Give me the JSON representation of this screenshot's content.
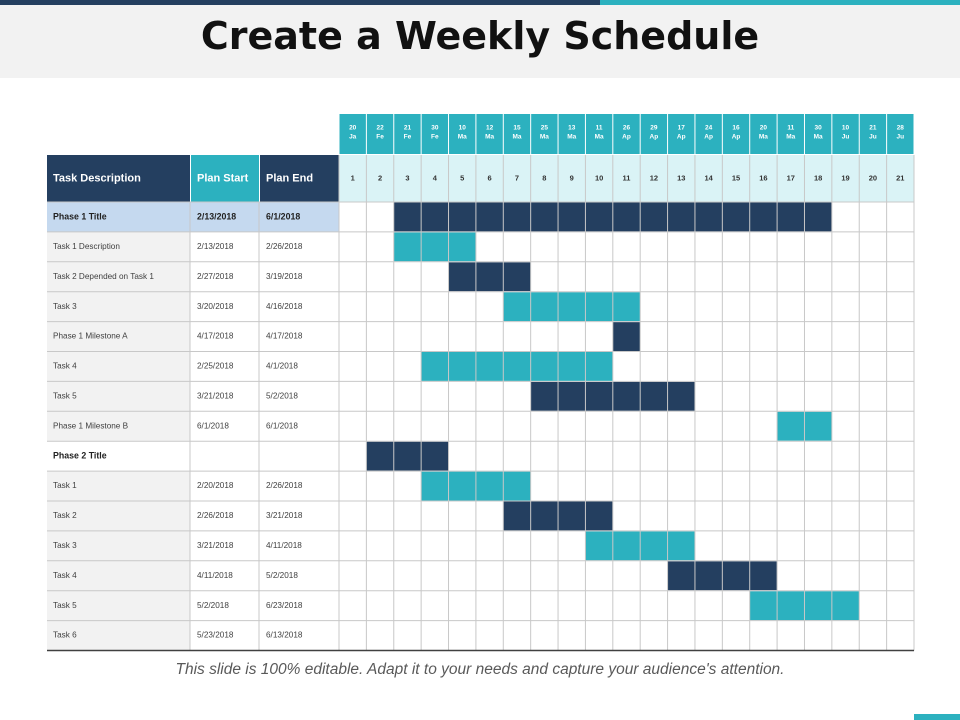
{
  "slide": {
    "title": "Create a Weekly Schedule",
    "footer": "This slide is 100% editable. Adapt it to your needs and capture your audience's attention."
  },
  "colors": {
    "dark": "#243f60",
    "accent": "#2cb1bf",
    "phase_bg": "#c5d9ef",
    "week_row_bg": "#daf3f6",
    "row_label_bg": "#f2f2f2"
  },
  "table": {
    "headers": {
      "task": "Task Description",
      "start": "Plan Start",
      "end": "Plan End"
    },
    "week_dates": [
      [
        "20",
        "Ja"
      ],
      [
        "22",
        "Fe"
      ],
      [
        "21",
        "Fe"
      ],
      [
        "30",
        "Fe"
      ],
      [
        "10",
        "Ma"
      ],
      [
        "12",
        "Ma"
      ],
      [
        "15",
        "Ma"
      ],
      [
        "25",
        "Ma"
      ],
      [
        "13",
        "Ma"
      ],
      [
        "11",
        "Ma"
      ],
      [
        "26",
        "Ap"
      ],
      [
        "29",
        "Ap"
      ],
      [
        "17",
        "Ap"
      ],
      [
        "24",
        "Ap"
      ],
      [
        "16",
        "Ap"
      ],
      [
        "20",
        "Ma"
      ],
      [
        "11",
        "Ma"
      ],
      [
        "30",
        "Ma"
      ],
      [
        "10",
        "Ju"
      ],
      [
        "21",
        "Ju"
      ],
      [
        "28",
        "Ju"
      ]
    ],
    "week_numbers": [
      "1",
      "2",
      "3",
      "4",
      "5",
      "6",
      "7",
      "8",
      "9",
      "10",
      "11",
      "12",
      "13",
      "14",
      "15",
      "16",
      "17",
      "18",
      "19",
      "20",
      "21"
    ],
    "rows": [
      {
        "task": "Phase 1 Title",
        "start": "2/13/2018",
        "end": "6/1/2018",
        "type": "phase",
        "bar_start": 3,
        "bar_end": 18,
        "color": "dark"
      },
      {
        "task": "Task 1 Description",
        "start": "2/13/2018",
        "end": "2/26/2018",
        "type": "task",
        "bar_start": 3,
        "bar_end": 5,
        "color": "accent"
      },
      {
        "task": "Task 2 Depended  on Task 1",
        "start": "2/27/2018",
        "end": "3/19/2018",
        "type": "task",
        "bar_start": 5,
        "bar_end": 7,
        "color": "dark"
      },
      {
        "task": "Task 3",
        "start": "3/20/2018",
        "end": "4/16/2018",
        "type": "task",
        "bar_start": 7,
        "bar_end": 11,
        "color": "accent"
      },
      {
        "task": "Phase 1 Milestone A",
        "start": "4/17/2018",
        "end": "4/17/2018",
        "type": "task",
        "bar_start": 11,
        "bar_end": 11,
        "color": "dark"
      },
      {
        "task": "Task 4",
        "start": "2/25/2018",
        "end": "4/1/2018",
        "type": "task",
        "bar_start": 4,
        "bar_end": 10,
        "color": "accent"
      },
      {
        "task": "Task 5",
        "start": "3/21/2018",
        "end": "5/2/2018",
        "type": "task",
        "bar_start": 8,
        "bar_end": 13,
        "color": "dark"
      },
      {
        "task": "Phase 1 Milestone B",
        "start": "6/1/2018",
        "end": "6/1/2018",
        "type": "task",
        "bar_start": 17,
        "bar_end": 18,
        "color": "accent"
      },
      {
        "task": "Phase 2 Title",
        "start": "",
        "end": "",
        "type": "phase2",
        "bar_start": 2,
        "bar_end": 4,
        "color": "dark"
      },
      {
        "task": "Task 1",
        "start": "2/20/2018",
        "end": "2/26/2018",
        "type": "task",
        "bar_start": 4,
        "bar_end": 7,
        "color": "accent"
      },
      {
        "task": "Task 2",
        "start": "2/26/2018",
        "end": "3/21/2018",
        "type": "task",
        "bar_start": 7,
        "bar_end": 10,
        "color": "dark"
      },
      {
        "task": "Task 3",
        "start": "3/21/2018",
        "end": "4/11/2018",
        "type": "task",
        "bar_start": 10,
        "bar_end": 13,
        "color": "accent"
      },
      {
        "task": "Task 4",
        "start": "4/11/2018",
        "end": "5/2/2018",
        "type": "task",
        "bar_start": 13,
        "bar_end": 16,
        "color": "dark"
      },
      {
        "task": "Task 5",
        "start": "5/2/2018",
        "end": "6/23/2018",
        "type": "task",
        "bar_start": 16,
        "bar_end": 19,
        "color": "accent"
      },
      {
        "task": "Task 6",
        "start": "5/23/2018",
        "end": "6/13/2018",
        "type": "task",
        "bar_start": null,
        "bar_end": null,
        "color": ""
      }
    ]
  }
}
